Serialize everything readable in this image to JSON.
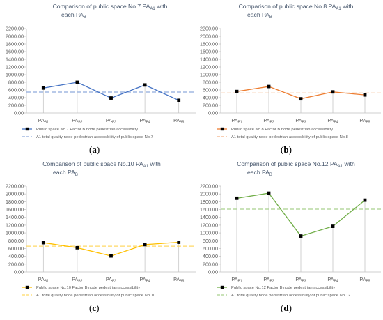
{
  "chart_data": [
    {
      "type": "line",
      "panel_label": "(a)",
      "title_line1": "Comparison of public space No.7 PA",
      "title_sub1": "A1",
      "title_mid": " with",
      "title_line2": "each PA",
      "title_sub2": "B",
      "categories": [
        "PAB1",
        "PAB2",
        "PAB3",
        "PAB4",
        "PAB5"
      ],
      "tick_main": "PA",
      "tick_subs": [
        "B1",
        "B2",
        "B3",
        "B4",
        "B5"
      ],
      "ylim": [
        0,
        2200
      ],
      "yticks": [
        "0.00",
        "200.00",
        "400.00",
        "600.00",
        "800.00",
        "1000.00",
        "1200.00",
        "1400.00",
        "1600.00",
        "1800.00",
        "2000.00",
        "2200.00"
      ],
      "series": [
        {
          "name": "Public space No.7 Factor B node pedestrian accessibility",
          "values": [
            650,
            800,
            390,
            730,
            330
          ]
        },
        {
          "name": "A1 total quality node pedestrian accessibility of public space No.7",
          "values": [
            545,
            545,
            545,
            545,
            545
          ]
        }
      ],
      "color": "#4472c4",
      "dash_color": "#8faadc"
    },
    {
      "type": "line",
      "panel_label": "(b)",
      "title_line1": "Comparison of public space No.8 PA",
      "title_sub1": "A1",
      "title_mid": " with",
      "title_line2": "each PA",
      "title_sub2": "B",
      "categories": [
        "PAB1",
        "PAB2",
        "PAB3",
        "PAB4",
        "PAB5"
      ],
      "tick_main": "PA",
      "tick_subs": [
        "B1",
        "B2",
        "B3",
        "B4",
        "B5"
      ],
      "ylim": [
        0,
        2200
      ],
      "yticks": [
        "0.00",
        "200.00",
        "400.00",
        "600.00",
        "800.00",
        "1000.00",
        "1200.00",
        "1400.00",
        "1600.00",
        "1800.00",
        "2000.00",
        "2200.00"
      ],
      "series": [
        {
          "name": "Public space No.8 Factor B node pedestrian accessibility",
          "values": [
            560,
            690,
            370,
            550,
            470
          ]
        },
        {
          "name": "A1 total quality node pedestrian accessibility of public space No.8",
          "values": [
            520,
            520,
            520,
            520,
            520
          ]
        }
      ],
      "color": "#ed7d31",
      "dash_color": "#f4b183"
    },
    {
      "type": "line",
      "panel_label": "(c)",
      "title_line1": "Comparison of public space No.10 PA",
      "title_sub1": "A1",
      "title_mid": " with",
      "title_line2": "each PA",
      "title_sub2": "B",
      "categories": [
        "PAB1",
        "PAB2",
        "PAB3",
        "PAB4",
        "PAB5"
      ],
      "tick_main": "PA",
      "tick_subs": [
        "B1",
        "B2",
        "B3",
        "B4",
        "B5"
      ],
      "ylim": [
        0,
        2200
      ],
      "yticks": [
        "0.00",
        "200.00",
        "400.00",
        "600.00",
        "800.00",
        "1000.00",
        "1200.00",
        "1400.00",
        "1600.00",
        "1800.00",
        "2000.00",
        "2200.00"
      ],
      "series": [
        {
          "name": "Public space No.10 Factor B node pedestrian accessibility",
          "values": [
            750,
            620,
            410,
            700,
            760
          ]
        },
        {
          "name": "A1 total quality node pedestrian accessibility of public space No.10",
          "values": [
            660,
            660,
            660,
            660,
            660
          ]
        }
      ],
      "color": "#ffc000",
      "dash_color": "#ffd966"
    },
    {
      "type": "line",
      "panel_label": "(d)",
      "title_line1": "Comparison of public space No.12 PA",
      "title_sub1": "A1",
      "title_mid": " with",
      "title_line2": "each PA",
      "title_sub2": "B",
      "categories": [
        "PAB1",
        "PAB2",
        "PAB3",
        "PAB4",
        "PAB5"
      ],
      "tick_main": "PA",
      "tick_subs": [
        "B1",
        "B2",
        "B3",
        "B4",
        "B5"
      ],
      "ylim": [
        0,
        2200
      ],
      "yticks": [
        "0.00",
        "200.00",
        "400.00",
        "600.00",
        "800.00",
        "1000.00",
        "1200.00",
        "1400.00",
        "1600.00",
        "1800.00",
        "2000.00",
        "2200.00"
      ],
      "series": [
        {
          "name": "Public space No.12 Factor B node pedestrian accessibility",
          "values": [
            1890,
            2020,
            920,
            1170,
            1840
          ]
        },
        {
          "name": "A1 total quality node pedestrian accessibility of public space No.12",
          "values": [
            1610,
            1610,
            1610,
            1610,
            1610
          ]
        }
      ],
      "color": "#70ad47",
      "dash_color": "#a9d18e"
    }
  ]
}
